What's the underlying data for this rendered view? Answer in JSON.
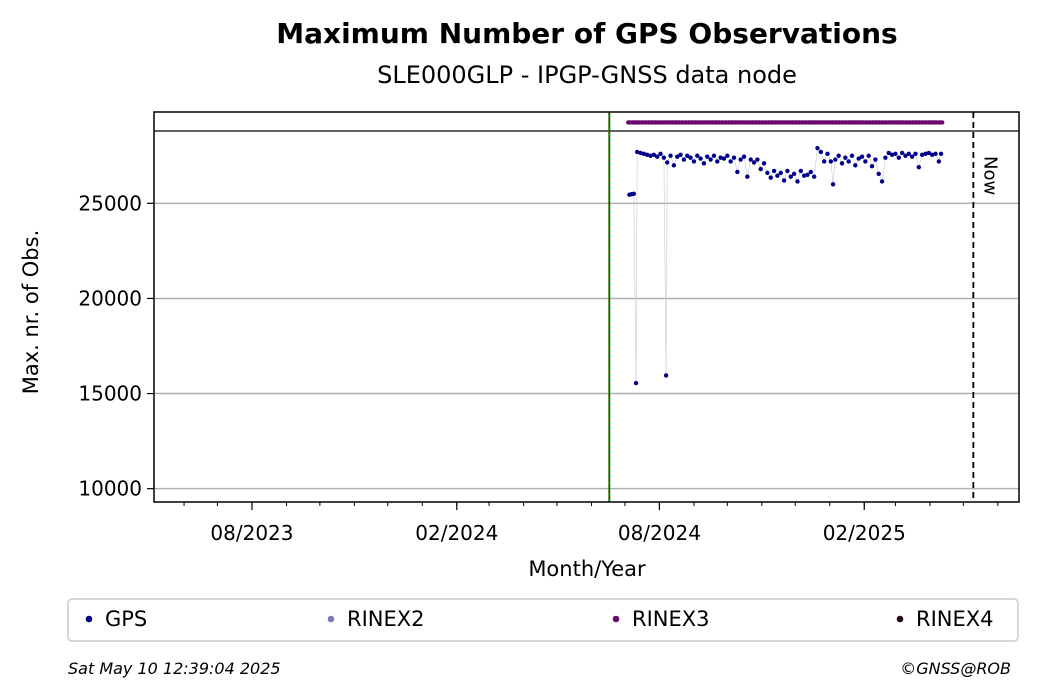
{
  "chart_data": {
    "type": "scatter",
    "title": "Maximum Number of GPS Observations",
    "subtitle": "SLE000GLP - IPGP-GNSS data node",
    "xlabel": "Month/Year",
    "ylabel": "Max. nr. of Obs.",
    "xlim": [
      "2023-05-05",
      "2025-06-20"
    ],
    "ylim": [
      9300,
      29800
    ],
    "y_ticks": [
      10000,
      15000,
      20000,
      25000
    ],
    "x_ticks": [
      {
        "date": "2023-08-01",
        "label": "08/2023"
      },
      {
        "date": "2024-02-01",
        "label": "02/2024"
      },
      {
        "date": "2024-08-01",
        "label": "08/2024"
      },
      {
        "date": "2025-02-01",
        "label": "02/2025"
      }
    ],
    "grid": "horizontal",
    "reference_line_y": 28800,
    "vertical_lines": [
      {
        "date": "2024-06-17",
        "style": "green-red-dashed",
        "label": ""
      },
      {
        "date": "2025-05-10",
        "style": "black-dashed",
        "label": "Now"
      }
    ],
    "series": [
      {
        "name": "GPS",
        "color": "#00008b",
        "marker": "dot",
        "points": [
          [
            "2024-07-05",
            25450
          ],
          [
            "2024-07-07",
            25480
          ],
          [
            "2024-07-09",
            25500
          ],
          [
            "2024-07-11",
            15550
          ],
          [
            "2024-07-12",
            27700
          ],
          [
            "2024-07-15",
            27650
          ],
          [
            "2024-07-18",
            27600
          ],
          [
            "2024-07-21",
            27550
          ],
          [
            "2024-07-24",
            27500
          ],
          [
            "2024-07-27",
            27550
          ],
          [
            "2024-07-30",
            27450
          ],
          [
            "2024-08-02",
            27600
          ],
          [
            "2024-08-05",
            27400
          ],
          [
            "2024-08-07",
            15950
          ],
          [
            "2024-08-08",
            27150
          ],
          [
            "2024-08-11",
            27500
          ],
          [
            "2024-08-14",
            27000
          ],
          [
            "2024-08-17",
            27450
          ],
          [
            "2024-08-20",
            27550
          ],
          [
            "2024-08-23",
            27300
          ],
          [
            "2024-08-26",
            27500
          ],
          [
            "2024-08-29",
            27400
          ],
          [
            "2024-09-01",
            27200
          ],
          [
            "2024-09-04",
            27500
          ],
          [
            "2024-09-07",
            27350
          ],
          [
            "2024-09-10",
            27100
          ],
          [
            "2024-09-13",
            27450
          ],
          [
            "2024-09-16",
            27300
          ],
          [
            "2024-09-19",
            27500
          ],
          [
            "2024-09-22",
            27200
          ],
          [
            "2024-09-25",
            27400
          ],
          [
            "2024-09-28",
            27350
          ],
          [
            "2024-10-01",
            27500
          ],
          [
            "2024-10-04",
            27200
          ],
          [
            "2024-10-07",
            27400
          ],
          [
            "2024-10-10",
            26650
          ],
          [
            "2024-10-13",
            27300
          ],
          [
            "2024-10-16",
            27450
          ],
          [
            "2024-10-19",
            26400
          ],
          [
            "2024-10-22",
            27300
          ],
          [
            "2024-10-25",
            27150
          ],
          [
            "2024-10-28",
            27300
          ],
          [
            "2024-10-31",
            26800
          ],
          [
            "2024-11-03",
            27100
          ],
          [
            "2024-11-06",
            26600
          ],
          [
            "2024-11-09",
            26350
          ],
          [
            "2024-11-12",
            26700
          ],
          [
            "2024-11-15",
            26450
          ],
          [
            "2024-11-18",
            26600
          ],
          [
            "2024-11-21",
            26200
          ],
          [
            "2024-11-24",
            26700
          ],
          [
            "2024-11-27",
            26400
          ],
          [
            "2024-11-30",
            26550
          ],
          [
            "2024-12-03",
            26150
          ],
          [
            "2024-12-06",
            26700
          ],
          [
            "2024-12-09",
            26450
          ],
          [
            "2024-12-12",
            26500
          ],
          [
            "2024-12-15",
            26650
          ],
          [
            "2024-12-18",
            26400
          ],
          [
            "2024-12-21",
            27900
          ],
          [
            "2024-12-24",
            27700
          ],
          [
            "2024-12-27",
            27200
          ],
          [
            "2024-12-30",
            27600
          ],
          [
            "2025-01-02",
            27200
          ],
          [
            "2025-01-04",
            26000
          ],
          [
            "2025-01-06",
            27300
          ],
          [
            "2025-01-09",
            27500
          ],
          [
            "2025-01-12",
            27100
          ],
          [
            "2025-01-15",
            27400
          ],
          [
            "2025-01-18",
            27200
          ],
          [
            "2025-01-21",
            27500
          ],
          [
            "2025-01-24",
            27000
          ],
          [
            "2025-01-27",
            27350
          ],
          [
            "2025-01-30",
            27450
          ],
          [
            "2025-02-02",
            27200
          ],
          [
            "2025-02-05",
            27500
          ],
          [
            "2025-02-08",
            26950
          ],
          [
            "2025-02-11",
            27300
          ],
          [
            "2025-02-14",
            26550
          ],
          [
            "2025-02-17",
            26150
          ],
          [
            "2025-02-20",
            27400
          ],
          [
            "2025-02-23",
            27650
          ],
          [
            "2025-02-26",
            27550
          ],
          [
            "2025-03-01",
            27600
          ],
          [
            "2025-03-04",
            27400
          ],
          [
            "2025-03-07",
            27650
          ],
          [
            "2025-03-10",
            27500
          ],
          [
            "2025-03-13",
            27600
          ],
          [
            "2025-03-16",
            27450
          ],
          [
            "2025-03-19",
            27600
          ],
          [
            "2025-03-22",
            26900
          ],
          [
            "2025-03-25",
            27550
          ],
          [
            "2025-03-28",
            27600
          ],
          [
            "2025-03-31",
            27650
          ],
          [
            "2025-04-03",
            27550
          ],
          [
            "2025-04-06",
            27600
          ],
          [
            "2025-04-09",
            27200
          ],
          [
            "2025-04-11",
            27600
          ]
        ]
      },
      {
        "name": "RINEX2",
        "color": "#7b7bb5",
        "marker": "dot",
        "points": []
      },
      {
        "name": "RINEX3",
        "color": "#6a0a6a",
        "marker": "dot",
        "range": [
          "2024-07-04",
          "2025-04-12"
        ],
        "value": 29250
      },
      {
        "name": "RINEX4",
        "color": "#2b0a1e",
        "marker": "dot",
        "points": []
      }
    ],
    "legend_placement": "bottom"
  },
  "footer": {
    "timestamp": "Sat May 10 12:39:04 2025",
    "credit": "©GNSS@ROB"
  }
}
